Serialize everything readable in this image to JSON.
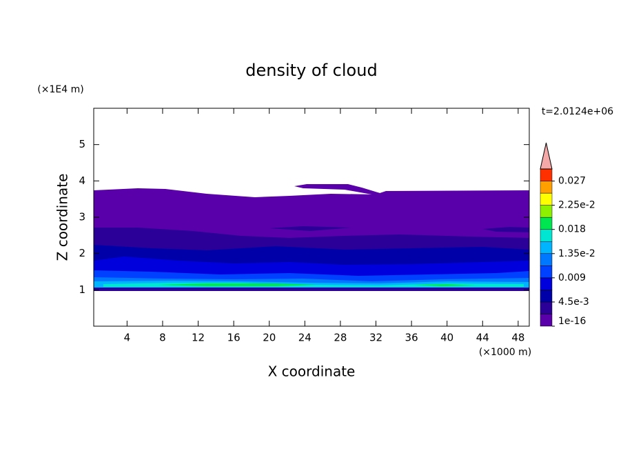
{
  "chart_data": {
    "type": "contour",
    "title": "density of cloud",
    "x_label": "X coordinate",
    "y_label": "Z coordinate",
    "x_unit": "(×1000 m)",
    "y_unit": "(×1E4 m)",
    "annotation": "t=2.0124e+06",
    "xlim": [
      0.25,
      49.25
    ],
    "ylim": [
      0,
      6
    ],
    "xticks": [
      4,
      8,
      12,
      16,
      20,
      24,
      28,
      32,
      36,
      40,
      44,
      48
    ],
    "yticks": [
      1,
      2,
      3,
      4,
      5
    ],
    "colorbar": {
      "clim": [
        0,
        0.02925
      ],
      "ticks": [
        {
          "value": 1e-16,
          "label": "1e-16"
        },
        {
          "value": 0.0045,
          "label": "4.5e-3"
        },
        0.009,
        {
          "value": 0.0135,
          "label": "1.35e-2"
        },
        0.018,
        {
          "value": 0.0225,
          "label": "2.25e-2"
        },
        0.027
      ],
      "colors": [
        "#5a00aa",
        "#2a0098",
        "#0000a8",
        "#0000dc",
        "#0040ff",
        "#0078ff",
        "#00b4ff",
        "#00e6d2",
        "#00e650",
        "#8cf000",
        "#ffff00",
        "#ffa000",
        "#ff3000"
      ],
      "extend_color": "#f4a8a8"
    }
  }
}
